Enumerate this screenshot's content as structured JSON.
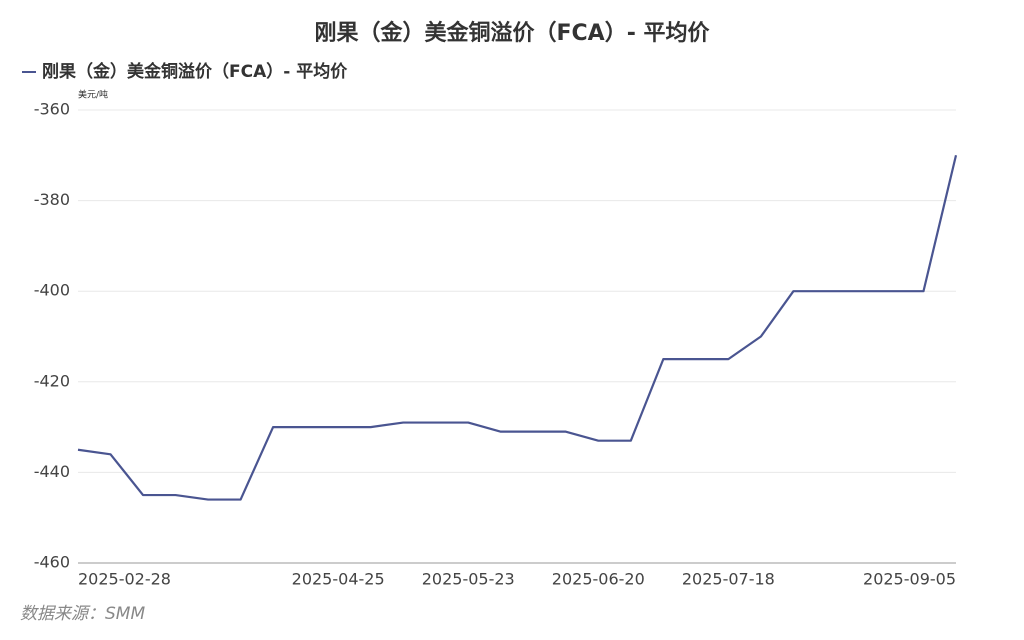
{
  "chart_data": {
    "type": "line",
    "title": "刚果（金）美金铜溢价（FCA）- 平均价",
    "y_unit": "美元/吨",
    "source": "数据来源：SMM",
    "categories": [
      "2025-02-28",
      null,
      null,
      null,
      null,
      null,
      null,
      null,
      "2025-04-25",
      null,
      null,
      null,
      "2025-05-23",
      null,
      null,
      null,
      "2025-06-20",
      null,
      null,
      null,
      "2025-07-18",
      null,
      null,
      null,
      null,
      null,
      null,
      "2025-09-05"
    ],
    "series": [
      {
        "name": "刚果（金）美金铜溢价（FCA）- 平均价",
        "color": "#4a5591",
        "values": [
          -435,
          -436,
          -445,
          -445,
          -446,
          -446,
          -430,
          -430,
          -430,
          -430,
          -429,
          -429,
          -429,
          -431,
          -431,
          -431,
          -433,
          -433,
          -415,
          -415,
          -415,
          -410,
          -400,
          -400,
          -400,
          -400,
          -400,
          -370
        ]
      }
    ],
    "ylim": [
      -460,
      -360
    ],
    "yticks": [
      -360,
      -380,
      -400,
      -420,
      -440,
      -460
    ],
    "grid": true,
    "legend": "top-left"
  }
}
